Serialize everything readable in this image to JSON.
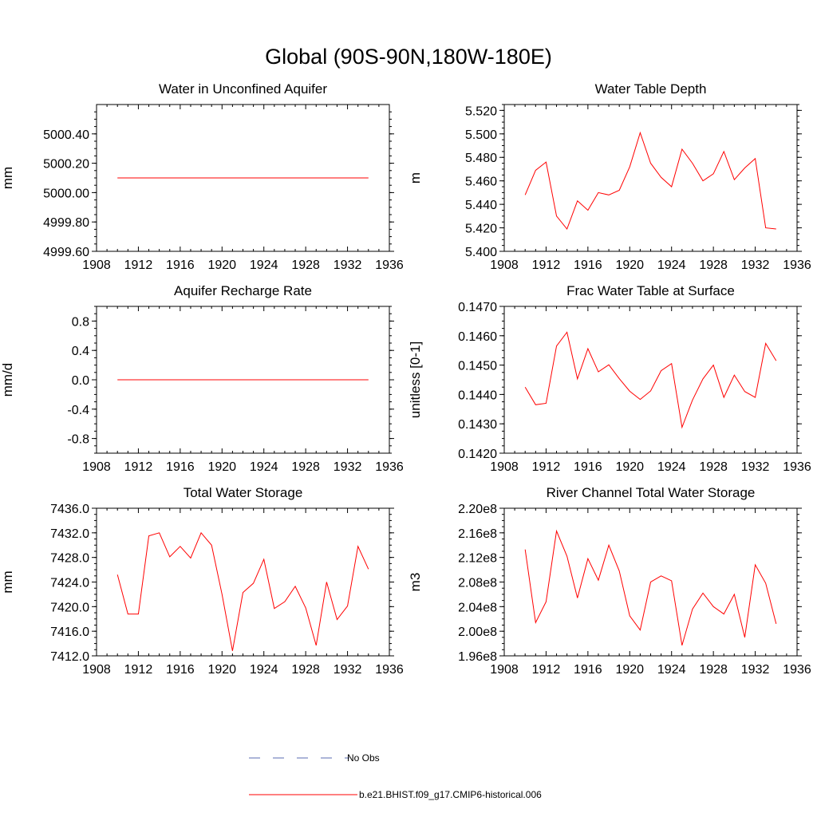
{
  "figure": {
    "title": "Global (90S-90N,180W-180E)"
  },
  "legend": {
    "items": [
      {
        "label": "No Obs",
        "color": "#5a6bb0",
        "style": "dashed"
      },
      {
        "label": "b.e21.BHIST.f09_g17.CMIP6-historical.006",
        "color": "#ff0000",
        "style": "solid"
      }
    ]
  },
  "chart_data": [
    {
      "type": "line",
      "title": "Water in Unconfined Aquifer",
      "ylabel": "mm",
      "xlim": [
        1908,
        1936
      ],
      "ylim": [
        4999.6,
        5000.6
      ],
      "xticks": [
        1908,
        1912,
        1916,
        1920,
        1924,
        1928,
        1932,
        1936
      ],
      "yticks": [
        4999.6,
        4999.8,
        5000.0,
        5000.2,
        5000.4
      ],
      "yticklabels": [
        "4999.60",
        "4999.80",
        "5000.00",
        "5000.20",
        "5000.40"
      ],
      "series": [
        {
          "color": "#ff0000",
          "x": [
            1910,
            1911,
            1912,
            1913,
            1914,
            1915,
            1916,
            1917,
            1918,
            1919,
            1920,
            1921,
            1922,
            1923,
            1924,
            1925,
            1926,
            1927,
            1928,
            1929,
            1930,
            1931,
            1932,
            1933,
            1934
          ],
          "y": [
            5000.1,
            5000.1,
            5000.1,
            5000.1,
            5000.1,
            5000.1,
            5000.1,
            5000.1,
            5000.1,
            5000.1,
            5000.1,
            5000.1,
            5000.1,
            5000.1,
            5000.1,
            5000.1,
            5000.1,
            5000.1,
            5000.1,
            5000.1,
            5000.1,
            5000.1,
            5000.1,
            5000.1,
            5000.1
          ]
        }
      ]
    },
    {
      "type": "line",
      "title": "Water Table Depth",
      "ylabel": "m",
      "xlim": [
        1908,
        1936
      ],
      "ylim": [
        5.4,
        5.525
      ],
      "xticks": [
        1908,
        1912,
        1916,
        1920,
        1924,
        1928,
        1932,
        1936
      ],
      "yticks": [
        5.4,
        5.42,
        5.44,
        5.46,
        5.48,
        5.5,
        5.52
      ],
      "yticklabels": [
        "5.400",
        "5.420",
        "5.440",
        "5.460",
        "5.480",
        "5.500",
        "5.520"
      ],
      "series": [
        {
          "color": "#ff0000",
          "x": [
            1910,
            1911,
            1912,
            1913,
            1914,
            1915,
            1916,
            1917,
            1918,
            1919,
            1920,
            1921,
            1922,
            1923,
            1924,
            1925,
            1926,
            1927,
            1928,
            1929,
            1930,
            1931,
            1932,
            1933,
            1934
          ],
          "y": [
            5.448,
            5.469,
            5.476,
            5.43,
            5.419,
            5.443,
            5.435,
            5.45,
            5.448,
            5.452,
            5.472,
            5.501,
            5.475,
            5.463,
            5.455,
            5.487,
            5.475,
            5.46,
            5.466,
            5.485,
            5.461,
            5.471,
            5.479,
            5.42,
            5.419
          ]
        }
      ]
    },
    {
      "type": "line",
      "title": "Aquifer Recharge Rate",
      "ylabel": "mm/d",
      "xlim": [
        1908,
        1936
      ],
      "ylim": [
        -1.0,
        1.0
      ],
      "xticks": [
        1908,
        1912,
        1916,
        1920,
        1924,
        1928,
        1932,
        1936
      ],
      "yticks": [
        -0.8,
        -0.4,
        0.0,
        0.4,
        0.8
      ],
      "yticklabels": [
        "-0.8",
        "-0.4",
        "0.0",
        "0.4",
        "0.8"
      ],
      "series": [
        {
          "color": "#ff0000",
          "x": [
            1910,
            1911,
            1912,
            1913,
            1914,
            1915,
            1916,
            1917,
            1918,
            1919,
            1920,
            1921,
            1922,
            1923,
            1924,
            1925,
            1926,
            1927,
            1928,
            1929,
            1930,
            1931,
            1932,
            1933,
            1934
          ],
          "y": [
            0,
            0,
            0,
            0,
            0,
            0,
            0,
            0,
            0,
            0,
            0,
            0,
            0,
            0,
            0,
            0,
            0,
            0,
            0,
            0,
            0,
            0,
            0,
            0,
            0
          ]
        }
      ]
    },
    {
      "type": "line",
      "title": "Frac Water Table at Surface",
      "ylabel": "unitless [0-1]",
      "xlim": [
        1908,
        1936
      ],
      "ylim": [
        0.142,
        0.147
      ],
      "xticks": [
        1908,
        1912,
        1916,
        1920,
        1924,
        1928,
        1932,
        1936
      ],
      "yticks": [
        0.142,
        0.143,
        0.144,
        0.145,
        0.146,
        0.147
      ],
      "yticklabels": [
        "0.1420",
        "0.1430",
        "0.1440",
        "0.1450",
        "0.1460",
        "0.1470"
      ],
      "series": [
        {
          "color": "#ff0000",
          "x": [
            1910,
            1911,
            1912,
            1913,
            1914,
            1915,
            1916,
            1917,
            1918,
            1919,
            1920,
            1921,
            1922,
            1923,
            1924,
            1925,
            1926,
            1927,
            1928,
            1929,
            1930,
            1931,
            1932,
            1933,
            1934
          ],
          "y": [
            0.14425,
            0.14365,
            0.1437,
            0.14565,
            0.14612,
            0.14453,
            0.14556,
            0.14477,
            0.14501,
            0.14454,
            0.14411,
            0.14383,
            0.14412,
            0.14481,
            0.14505,
            0.14288,
            0.14381,
            0.14453,
            0.145,
            0.1439,
            0.14466,
            0.1441,
            0.1439,
            0.14574,
            0.14515
          ]
        }
      ]
    },
    {
      "type": "line",
      "title": "Total Water Storage",
      "ylabel": "mm",
      "xlim": [
        1908,
        1936
      ],
      "ylim": [
        7412.0,
        7436.0
      ],
      "xticks": [
        1908,
        1912,
        1916,
        1920,
        1924,
        1928,
        1932,
        1936
      ],
      "yticks": [
        7412.0,
        7416.0,
        7420.0,
        7424.0,
        7428.0,
        7432.0,
        7436.0
      ],
      "yticklabels": [
        "7412.0",
        "7416.0",
        "7420.0",
        "7424.0",
        "7428.0",
        "7432.0",
        "7436.0"
      ],
      "series": [
        {
          "color": "#ff0000",
          "x": [
            1910,
            1911,
            1912,
            1913,
            1914,
            1915,
            1916,
            1917,
            1918,
            1919,
            1920,
            1921,
            1922,
            1923,
            1924,
            1925,
            1926,
            1927,
            1928,
            1929,
            1930,
            1931,
            1932,
            1933,
            1934
          ],
          "y": [
            7425.2,
            7418.8,
            7418.8,
            7431.5,
            7432.0,
            7428.1,
            7429.8,
            7427.9,
            7432.0,
            7430.0,
            7422.0,
            7412.8,
            7422.3,
            7423.8,
            7427.7,
            7419.7,
            7420.8,
            7423.3,
            7419.8,
            7413.7,
            7424.0,
            7417.9,
            7420.1,
            7429.8,
            7426.1
          ]
        }
      ]
    },
    {
      "type": "line",
      "title": "River Channel Total Water Storage",
      "ylabel": "m3",
      "xlim": [
        1908,
        1936
      ],
      "ylim": [
        196000000.0,
        220000000.0
      ],
      "xticks": [
        1908,
        1912,
        1916,
        1920,
        1924,
        1928,
        1932,
        1936
      ],
      "yticks": [
        196000000.0,
        200000000.0,
        204000000.0,
        208000000.0,
        212000000.0,
        216000000.0,
        220000000.0
      ],
      "yticklabels": [
        "1.96e8",
        "2.00e8",
        "2.04e8",
        "2.08e8",
        "2.12e8",
        "2.16e8",
        "2.20e8"
      ],
      "series": [
        {
          "color": "#ff0000",
          "x": [
            1910,
            1911,
            1912,
            1913,
            1914,
            1915,
            1916,
            1917,
            1918,
            1919,
            1920,
            1921,
            1922,
            1923,
            1924,
            1925,
            1926,
            1927,
            1928,
            1929,
            1930,
            1931,
            1932,
            1933,
            1934
          ],
          "y": [
            213300000.0,
            201400000.0,
            204800000.0,
            216300000.0,
            212200000.0,
            205400000.0,
            211800000.0,
            208300000.0,
            214000000.0,
            209800000.0,
            202500000.0,
            200200000.0,
            208000000.0,
            209000000.0,
            208200000.0,
            197700000.0,
            203600000.0,
            206200000.0,
            204000000.0,
            202800000.0,
            206000000.0,
            199000000.0,
            210800000.0,
            207800000.0,
            201200000.0
          ]
        }
      ]
    }
  ]
}
